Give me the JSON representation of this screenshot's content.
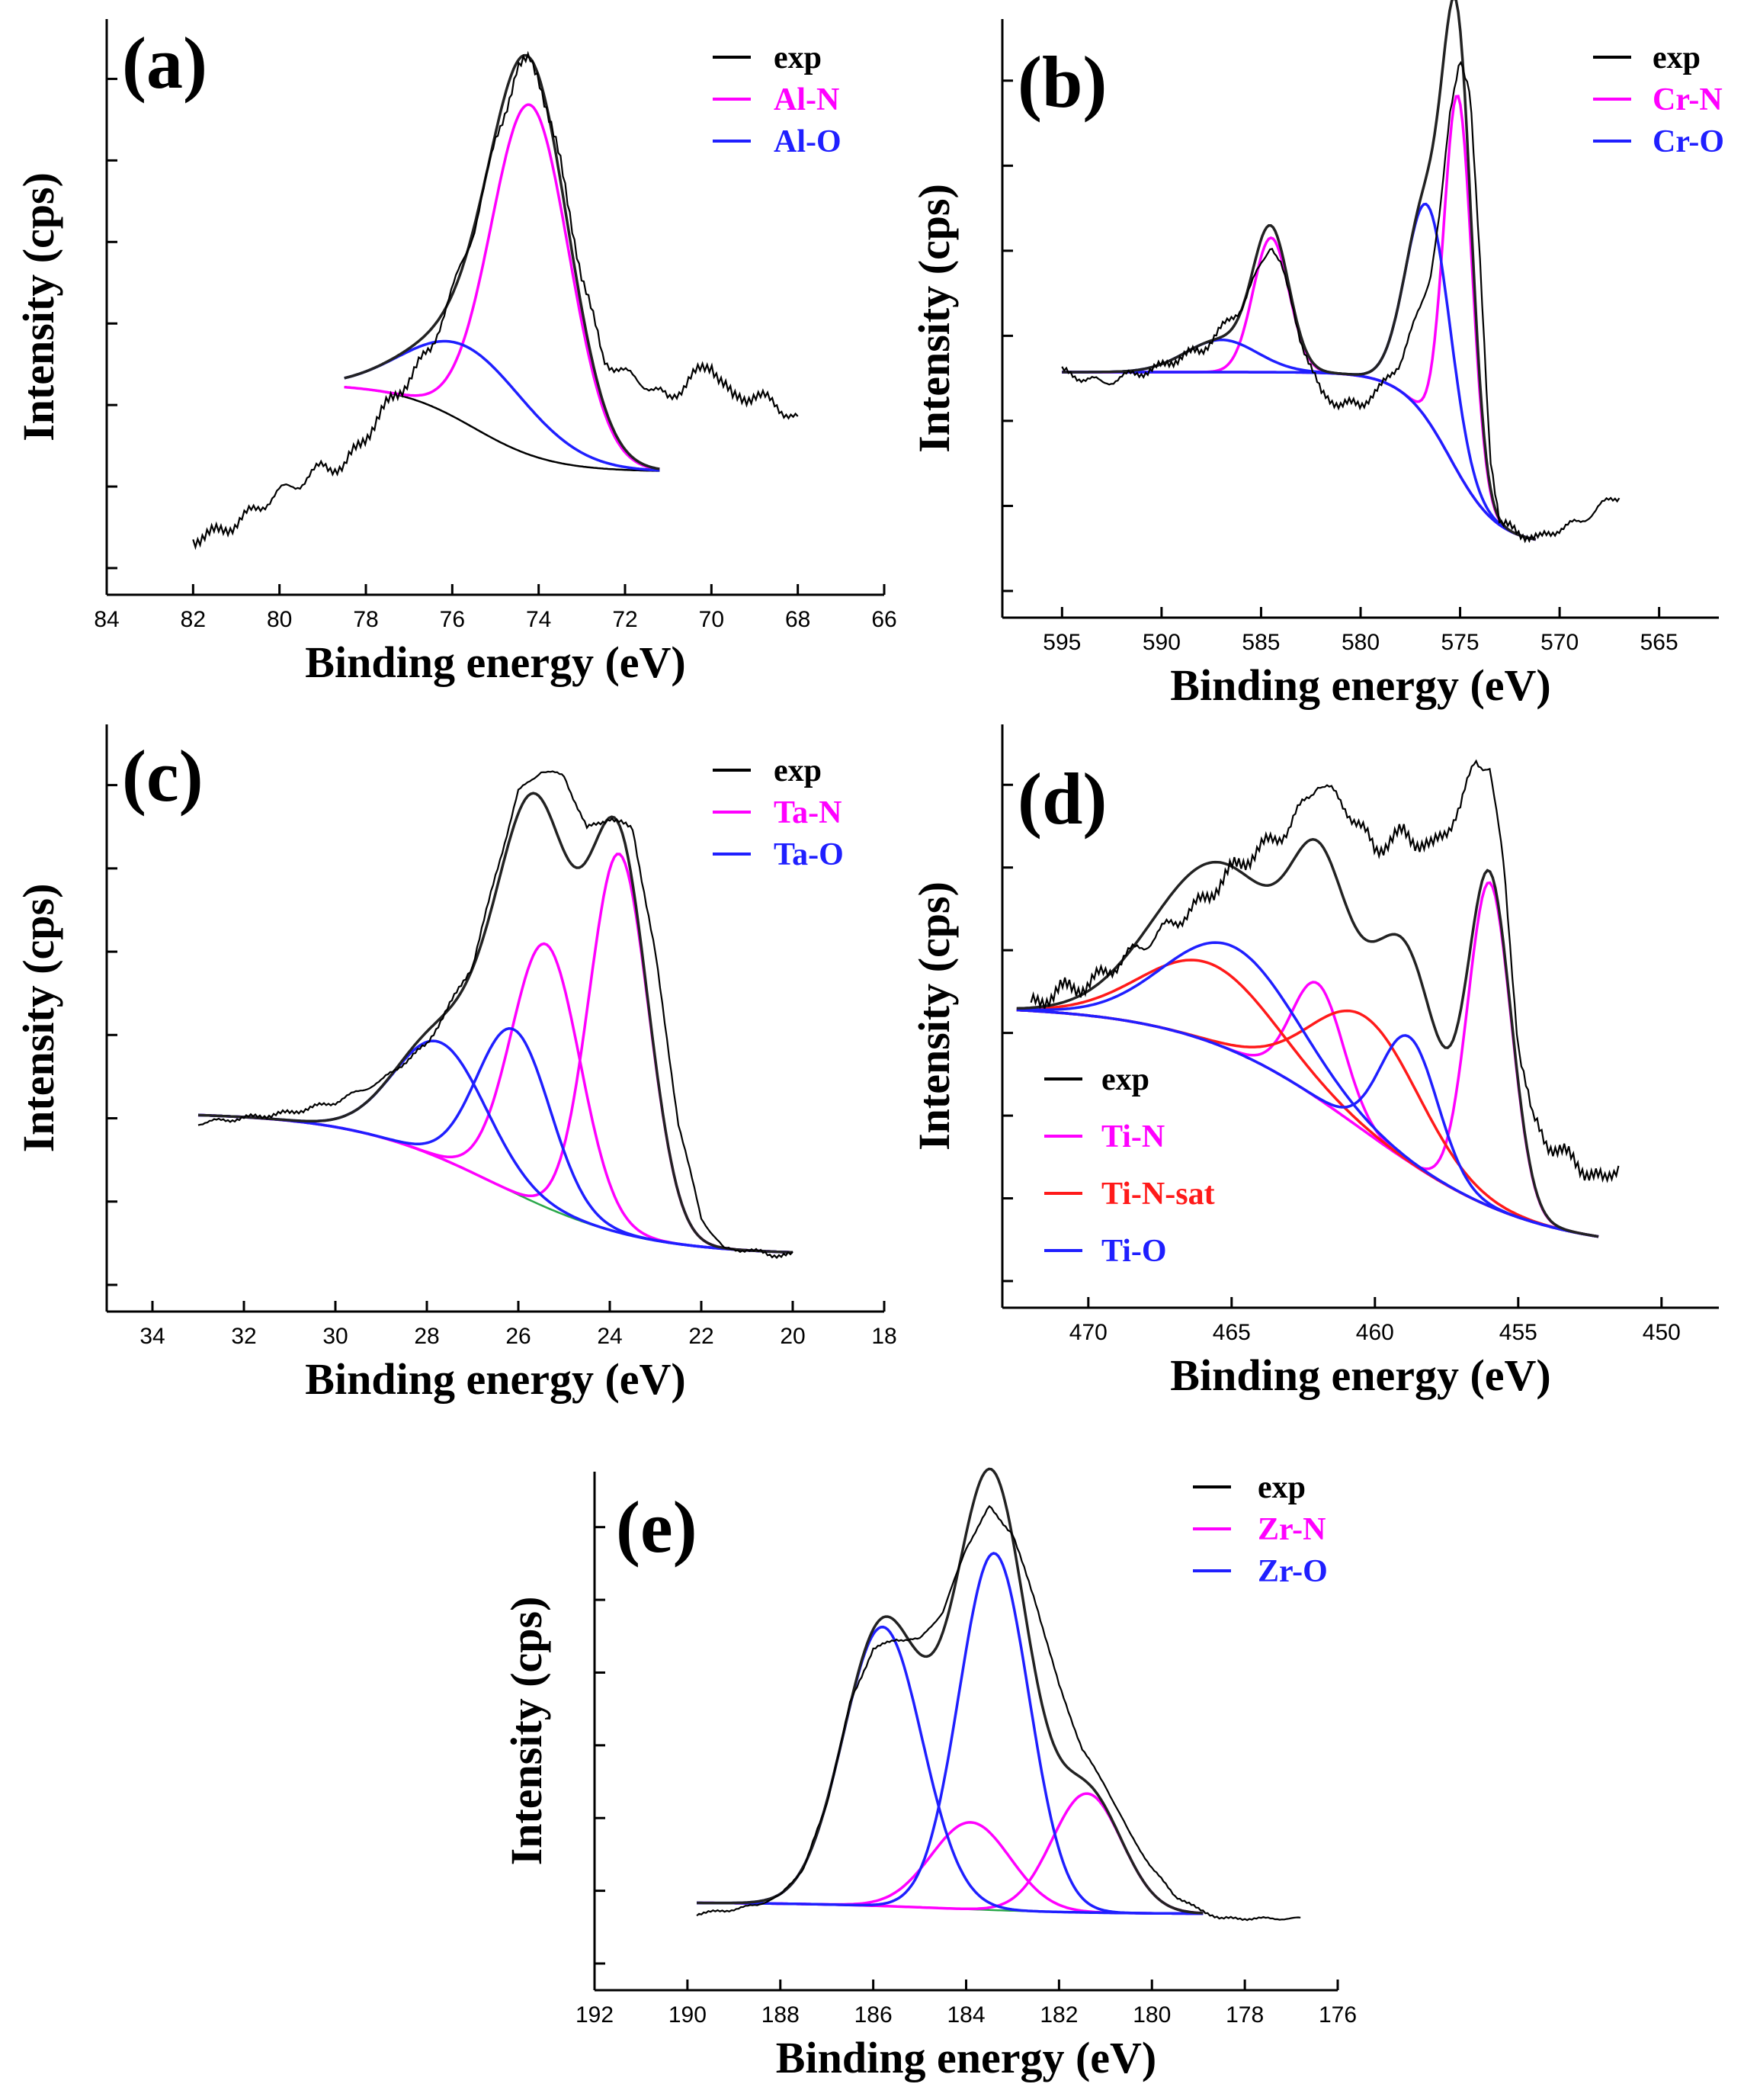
{
  "figure": {
    "xlabel": "Binding energy (eV)",
    "ylabel": "Intensity (cps)"
  },
  "chart_data": [
    {
      "id": "a",
      "panel_label": "(a)",
      "type": "line",
      "xlim": [
        84,
        66
      ],
      "ylim": [
        0,
        1
      ],
      "xticks": [
        "84",
        "82",
        "80",
        "78",
        "76",
        "74",
        "72",
        "70",
        "68",
        "66"
      ],
      "xlabel": "Binding energy (eV)",
      "ylabel": "Intensity (cps)",
      "legend": [
        {
          "label": "exp",
          "color": "#000000"
        },
        {
          "label": "Al-N",
          "color": "#ff00ff"
        },
        {
          "label": "Al-O",
          "color": "#1f1fff"
        }
      ],
      "series": [
        {
          "name": "exp",
          "color": "#000000",
          "kind": "exp",
          "x": [
            82,
            81.5,
            81,
            80.5,
            80,
            79.5,
            79,
            78.5,
            78,
            77.5,
            77,
            76.5,
            76,
            75.5,
            75,
            74.5,
            74.2,
            74,
            73.5,
            73,
            72.5,
            72,
            71.5,
            71,
            70.5,
            70,
            69.5,
            69,
            68.5,
            68
          ],
          "y": [
            0.05,
            0.06,
            0.08,
            0.11,
            0.14,
            0.16,
            0.19,
            0.19,
            0.25,
            0.31,
            0.36,
            0.42,
            0.53,
            0.65,
            0.82,
            0.96,
            0.98,
            0.95,
            0.78,
            0.56,
            0.4,
            0.37,
            0.35,
            0.32,
            0.36,
            0.39,
            0.32,
            0.33,
            0.31,
            0.28
          ],
          "noise": 0.018
        },
        {
          "name": "Al-N",
          "color": "#ff00ff",
          "kind": "peak",
          "center": 74.2,
          "height": 0.68,
          "width": 0.9
        },
        {
          "name": "Al-O",
          "color": "#1f1fff",
          "kind": "peak",
          "center": 75.6,
          "height": 0.15,
          "width": 1.4
        },
        {
          "name": "background",
          "color": "#000000",
          "kind": "background",
          "lo": 0.18,
          "hi": 0.35,
          "step_center": 75.5,
          "step_width": 0.9
        }
      ],
      "x_start": 78.5,
      "x_end": 71.2
    },
    {
      "id": "b",
      "panel_label": "(b)",
      "type": "line",
      "xlim": [
        598,
        562
      ],
      "ylim": [
        0,
        1
      ],
      "xticks": [
        "595",
        "590",
        "585",
        "580",
        "575",
        "570",
        "565"
      ],
      "xlabel": "Binding energy (eV)",
      "ylabel": "Intensity (cps)",
      "legend": [
        {
          "label": "exp",
          "color": "#000000"
        },
        {
          "label": "Cr-N",
          "color": "#ff00ff"
        },
        {
          "label": "Cr-O",
          "color": "#1f1fff"
        }
      ],
      "series": [
        {
          "name": "exp",
          "color": "#000000",
          "kind": "exp",
          "x": [
            595,
            594,
            593,
            592,
            591,
            590,
            589,
            588,
            587,
            586,
            585,
            584.5,
            584,
            583,
            582,
            581,
            580,
            579,
            578,
            577,
            576.5,
            576,
            575.5,
            575,
            574.5,
            574,
            573.5,
            573,
            572,
            571,
            570,
            569,
            568,
            567
          ],
          "y": [
            0.4,
            0.39,
            0.38,
            0.39,
            0.4,
            0.41,
            0.43,
            0.44,
            0.48,
            0.52,
            0.6,
            0.64,
            0.6,
            0.46,
            0.36,
            0.34,
            0.34,
            0.37,
            0.42,
            0.52,
            0.58,
            0.7,
            0.88,
            0.99,
            0.92,
            0.6,
            0.25,
            0.12,
            0.1,
            0.09,
            0.11,
            0.12,
            0.15,
            0.17
          ],
          "noise": 0.012
        },
        {
          "name": "Cr-N",
          "color": "#ff00ff",
          "kind": "peak",
          "center": 575.1,
          "height": 0.7,
          "width": 0.7
        },
        {
          "name": "Cr-N",
          "color": "#ff00ff",
          "kind": "peak",
          "center": 584.5,
          "height": 0.25,
          "width": 0.9
        },
        {
          "name": "Cr-O",
          "color": "#1f1fff",
          "kind": "peak",
          "center": 576.6,
          "height": 0.4,
          "width": 1.1
        },
        {
          "name": "Cr-O",
          "color": "#1f1fff",
          "kind": "peak",
          "center": 587.0,
          "height": 0.06,
          "width": 1.8
        },
        {
          "name": "background",
          "color": "#ff00ff",
          "kind": "background",
          "lo": 0.08,
          "hi": 0.4,
          "step_center": 575.5,
          "step_width": 1.2
        }
      ],
      "x_start": 595,
      "x_end": 571.2
    },
    {
      "id": "c",
      "panel_label": "(c)",
      "type": "line",
      "xlim": [
        35,
        18
      ],
      "ylim": [
        0,
        1
      ],
      "xticks": [
        "34",
        "32",
        "30",
        "28",
        "26",
        "24",
        "22",
        "20",
        "18"
      ],
      "xlabel": "Binding energy (eV)",
      "ylabel": "Intensity (cps)",
      "legend": [
        {
          "label": "exp",
          "color": "#000000"
        },
        {
          "label": "Ta-N",
          "color": "#ff00ff"
        },
        {
          "label": "Ta-O",
          "color": "#1f1fff"
        }
      ],
      "series": [
        {
          "name": "exp",
          "color": "#000000",
          "kind": "exp",
          "x": [
            33,
            32,
            31,
            30,
            29,
            28,
            27,
            26.5,
            26,
            25.5,
            25,
            24.5,
            24,
            23.5,
            23,
            22.5,
            22,
            21.5,
            21,
            20.5,
            20
          ],
          "y": [
            0.3,
            0.31,
            0.32,
            0.34,
            0.38,
            0.45,
            0.6,
            0.77,
            0.93,
            0.97,
            0.96,
            0.86,
            0.88,
            0.86,
            0.62,
            0.3,
            0.12,
            0.06,
            0.06,
            0.05,
            0.05
          ],
          "noise": 0.006
        },
        {
          "name": "Ta-N",
          "color": "#ff00ff",
          "kind": "peak",
          "center": 23.8,
          "height": 0.72,
          "width": 0.65
        },
        {
          "name": "Ta-N",
          "color": "#ff00ff",
          "kind": "peak",
          "center": 25.4,
          "height": 0.5,
          "width": 0.75
        },
        {
          "name": "Ta-O",
          "color": "#1f1fff",
          "kind": "peak",
          "center": 26.1,
          "height": 0.31,
          "width": 0.8
        },
        {
          "name": "Ta-O",
          "color": "#1f1fff",
          "kind": "peak",
          "center": 27.7,
          "height": 0.22,
          "width": 1.0
        },
        {
          "name": "background",
          "color": "#2aa84a",
          "kind": "background",
          "lo": 0.05,
          "hi": 0.32,
          "step_center": 26.5,
          "step_width": 1.6
        }
      ],
      "x_start": 33,
      "x_end": 20
    },
    {
      "id": "d",
      "panel_label": "(d)",
      "type": "line",
      "xlim": [
        473,
        448
      ],
      "ylim": [
        0,
        1
      ],
      "xticks": [
        "470",
        "465",
        "460",
        "455",
        "450"
      ],
      "xlabel": "Binding energy (eV)",
      "ylabel": "Intensity (cps)",
      "legend": [
        {
          "label": "exp",
          "color": "#000000"
        },
        {
          "label": "Ti-N",
          "color": "#ff00ff"
        },
        {
          "label": "Ti-N-sat",
          "color": "#ff1a1a"
        },
        {
          "label": "Ti-O",
          "color": "#1f1fff"
        }
      ],
      "series": [
        {
          "name": "exp",
          "color": "#000000",
          "kind": "exp",
          "x": [
            472,
            471,
            470,
            469,
            468,
            467,
            466,
            465,
            464,
            463,
            462,
            461,
            460,
            459,
            458,
            457,
            456.5,
            456,
            455.5,
            455,
            454.5,
            454,
            453,
            452,
            451.5
          ],
          "y": [
            0.52,
            0.55,
            0.56,
            0.6,
            0.64,
            0.68,
            0.72,
            0.78,
            0.82,
            0.86,
            0.95,
            0.9,
            0.82,
            0.85,
            0.82,
            0.9,
            0.99,
            0.98,
            0.78,
            0.45,
            0.3,
            0.26,
            0.22,
            0.18,
            0.22
          ],
          "noise": 0.022
        },
        {
          "name": "Ti-N",
          "color": "#ff00ff",
          "kind": "peak",
          "center": 456.0,
          "height": 0.62,
          "width": 0.75
        },
        {
          "name": "Ti-N",
          "color": "#ff00ff",
          "kind": "peak",
          "center": 462.0,
          "height": 0.22,
          "width": 0.9
        },
        {
          "name": "Ti-N-sat",
          "color": "#ff1a1a",
          "kind": "peak",
          "center": 465.8,
          "height": 0.15,
          "width": 2.3
        },
        {
          "name": "Ti-N-sat",
          "color": "#ff1a1a",
          "kind": "peak",
          "center": 460.3,
          "height": 0.22,
          "width": 1.9
        },
        {
          "name": "Ti-O",
          "color": "#1f1fff",
          "kind": "peak",
          "center": 465.0,
          "height": 0.2,
          "width": 2.3
        },
        {
          "name": "Ti-O",
          "color": "#1f1fff",
          "kind": "peak",
          "center": 458.8,
          "height": 0.24,
          "width": 1.0
        },
        {
          "name": "background",
          "color": "#ff00ff",
          "kind": "background",
          "lo": 0.05,
          "hi": 0.52,
          "step_center": 460.5,
          "step_width": 3.0
        }
      ],
      "x_start": 472.5,
      "x_end": 452.2
    },
    {
      "id": "e",
      "panel_label": "(e)",
      "type": "line",
      "xlim": [
        192,
        176
      ],
      "ylim": [
        0,
        1
      ],
      "xticks": [
        "192",
        "190",
        "188",
        "186",
        "184",
        "182",
        "180",
        "178",
        "176"
      ],
      "xlabel": "Binding energy (eV)",
      "ylabel": "Intensity (cps)",
      "legend": [
        {
          "label": "exp",
          "color": "#000000"
        },
        {
          "label": "Zr-N",
          "color": "#ff00ff"
        },
        {
          "label": "Zr-O",
          "color": "#1f1fff"
        }
      ],
      "series": [
        {
          "name": "exp",
          "color": "#000000",
          "kind": "exp",
          "x": [
            189.8,
            189,
            188.5,
            188,
            187.5,
            187,
            186.5,
            186,
            185.5,
            185,
            184.5,
            184,
            183.5,
            183,
            182.5,
            182,
            181.5,
            181,
            180.5,
            180,
            179.5,
            179,
            178.5,
            178,
            177.5,
            177,
            176.8
          ],
          "y": [
            0.1,
            0.11,
            0.12,
            0.14,
            0.2,
            0.34,
            0.56,
            0.68,
            0.7,
            0.7,
            0.76,
            0.9,
            0.99,
            0.93,
            0.78,
            0.6,
            0.46,
            0.38,
            0.28,
            0.2,
            0.14,
            0.11,
            0.09,
            0.09,
            0.09,
            0.09,
            0.09
          ],
          "noise": 0.004
        },
        {
          "name": "Zr-N",
          "color": "#ff00ff",
          "kind": "peak",
          "center": 181.4,
          "height": 0.26,
          "width": 0.75
        },
        {
          "name": "Zr-N",
          "color": "#ff00ff",
          "kind": "peak",
          "center": 183.9,
          "height": 0.19,
          "width": 0.85
        },
        {
          "name": "Zr-O",
          "color": "#1f1fff",
          "kind": "peak",
          "center": 183.4,
          "height": 0.78,
          "width": 0.75
        },
        {
          "name": "Zr-O",
          "color": "#1f1fff",
          "kind": "peak",
          "center": 185.8,
          "height": 0.61,
          "width": 0.85
        },
        {
          "name": "background",
          "color": "#2aa84a",
          "kind": "background",
          "lo": 0.1,
          "hi": 0.125,
          "step_center": 184.5,
          "step_width": 1.6
        }
      ],
      "x_start": 189.8,
      "x_end": 178.9
    }
  ]
}
